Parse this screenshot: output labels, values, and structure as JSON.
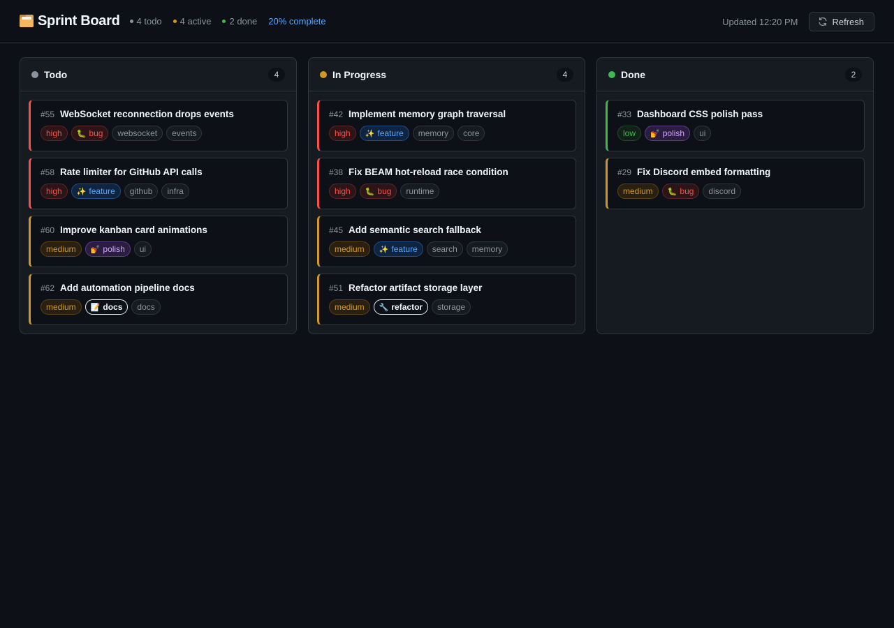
{
  "header": {
    "title": "Sprint Board",
    "icon": "card-file-box-icon",
    "stats": [
      {
        "label": "4 todo",
        "color": "#8b949e"
      },
      {
        "label": "4 active",
        "color": "#d29922"
      },
      {
        "label": "2 done",
        "color": "#3fb950"
      }
    ],
    "progress": "20% complete",
    "updated": "Updated 12:20 PM",
    "refresh_label": "Refresh"
  },
  "columns": [
    {
      "title": "Todo",
      "count": "4",
      "color": "#8b949e",
      "cards": [
        {
          "id": "#55",
          "title": "WebSocket reconnection drops events",
          "priority": "high",
          "tags": [
            {
              "label": "high",
              "kind": "high"
            },
            {
              "label": "bug",
              "kind": "bug",
              "emoji": "🐛"
            },
            {
              "label": "websocket",
              "kind": "plain"
            },
            {
              "label": "events",
              "kind": "plain"
            }
          ]
        },
        {
          "id": "#58",
          "title": "Rate limiter for GitHub API calls",
          "priority": "high",
          "tags": [
            {
              "label": "high",
              "kind": "high"
            },
            {
              "label": "feature",
              "kind": "feature",
              "emoji": "✨"
            },
            {
              "label": "github",
              "kind": "plain"
            },
            {
              "label": "infra",
              "kind": "plain"
            }
          ]
        },
        {
          "id": "#60",
          "title": "Improve kanban card animations",
          "priority": "medium",
          "tags": [
            {
              "label": "medium",
              "kind": "medium"
            },
            {
              "label": "polish",
              "kind": "polish",
              "emoji": "💅"
            },
            {
              "label": "ui",
              "kind": "plain"
            }
          ]
        },
        {
          "id": "#62",
          "title": "Add automation pipeline docs",
          "priority": "medium",
          "tags": [
            {
              "label": "medium",
              "kind": "medium"
            },
            {
              "label": "docs",
              "kind": "docs",
              "emoji": "📝"
            },
            {
              "label": "docs",
              "kind": "plain"
            }
          ]
        }
      ]
    },
    {
      "title": "In Progress",
      "count": "4",
      "color": "#d29922",
      "cards": [
        {
          "id": "#42",
          "title": "Implement memory graph traversal",
          "priority": "high",
          "tags": [
            {
              "label": "high",
              "kind": "high"
            },
            {
              "label": "feature",
              "kind": "feature",
              "emoji": "✨"
            },
            {
              "label": "memory",
              "kind": "plain"
            },
            {
              "label": "core",
              "kind": "plain"
            }
          ]
        },
        {
          "id": "#38",
          "title": "Fix BEAM hot-reload race condition",
          "priority": "high",
          "tags": [
            {
              "label": "high",
              "kind": "high"
            },
            {
              "label": "bug",
              "kind": "bug",
              "emoji": "🐛"
            },
            {
              "label": "runtime",
              "kind": "plain"
            }
          ]
        },
        {
          "id": "#45",
          "title": "Add semantic search fallback",
          "priority": "medium",
          "tags": [
            {
              "label": "medium",
              "kind": "medium"
            },
            {
              "label": "feature",
              "kind": "feature",
              "emoji": "✨"
            },
            {
              "label": "search",
              "kind": "plain"
            },
            {
              "label": "memory",
              "kind": "plain"
            }
          ]
        },
        {
          "id": "#51",
          "title": "Refactor artifact storage layer",
          "priority": "medium",
          "tags": [
            {
              "label": "medium",
              "kind": "medium"
            },
            {
              "label": "refactor",
              "kind": "refactor",
              "emoji": "🔧"
            },
            {
              "label": "storage",
              "kind": "plain"
            }
          ]
        }
      ]
    },
    {
      "title": "Done",
      "count": "2",
      "color": "#3fb950",
      "cards": [
        {
          "id": "#33",
          "title": "Dashboard CSS polish pass",
          "priority": "low",
          "tags": [
            {
              "label": "low",
              "kind": "low"
            },
            {
              "label": "polish",
              "kind": "polish",
              "emoji": "💅"
            },
            {
              "label": "ui",
              "kind": "plain"
            }
          ]
        },
        {
          "id": "#29",
          "title": "Fix Discord embed formatting",
          "priority": "medium",
          "tags": [
            {
              "label": "medium",
              "kind": "medium"
            },
            {
              "label": "bug",
              "kind": "bug",
              "emoji": "🐛"
            },
            {
              "label": "discord",
              "kind": "plain"
            }
          ]
        }
      ]
    }
  ]
}
